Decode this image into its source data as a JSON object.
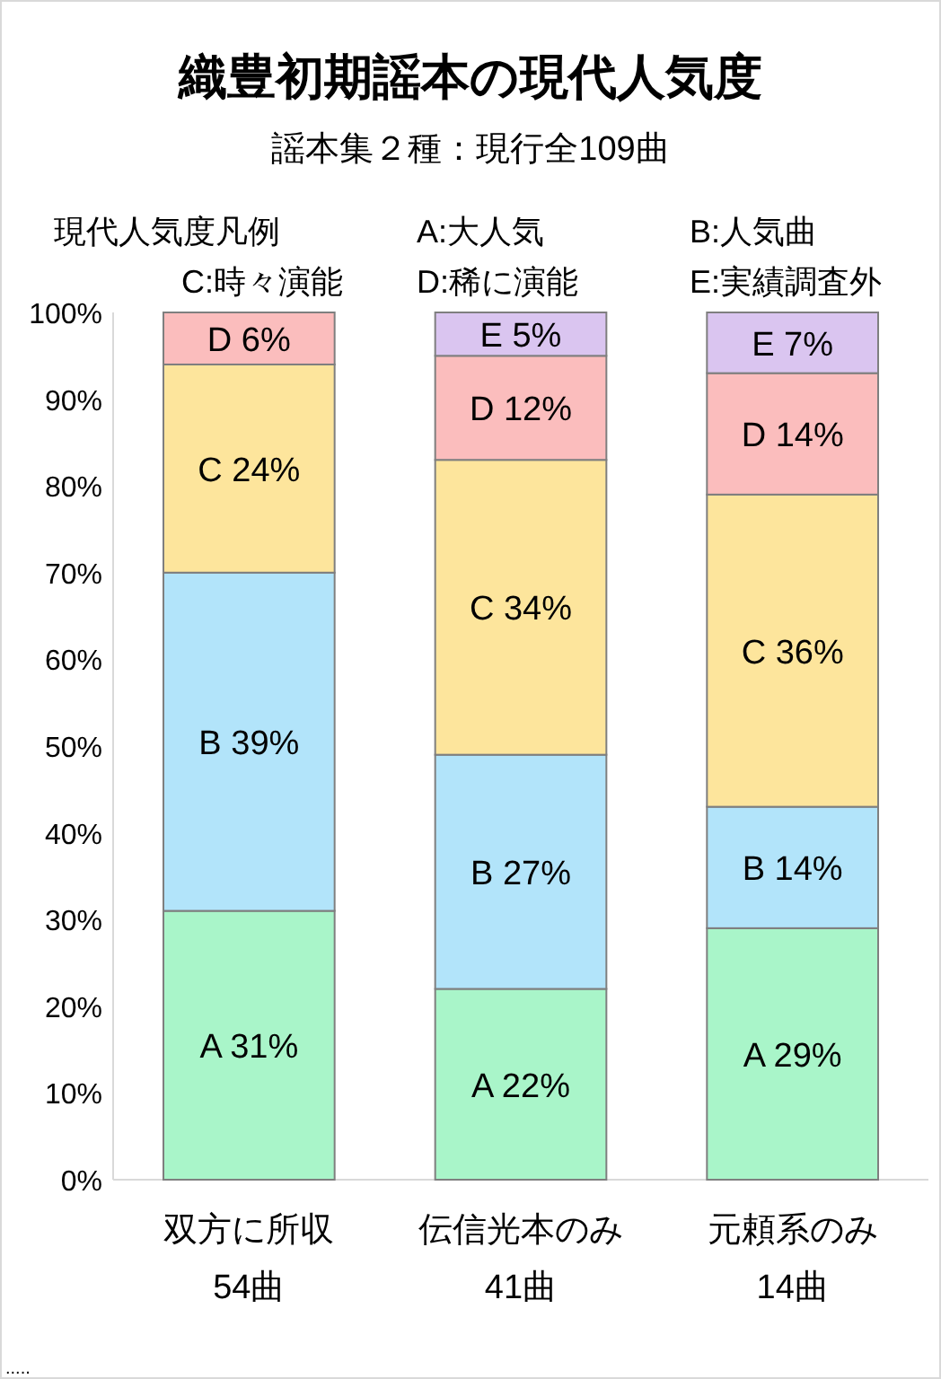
{
  "chart_data": {
    "type": "bar",
    "title": "織豊初期謡本の現代人気度",
    "subtitle": "謡本集２種：現行全109曲",
    "annotations": [
      "現代人気度凡例",
      "A:大人気",
      "B:人気曲",
      "C:時々演能",
      "D:稀に演能",
      "E:実績調査外",
      "....."
    ],
    "categories": [
      "双方に所収\n54曲",
      "伝信光本のみ\n41曲",
      "元頼系のみ\n14曲"
    ],
    "stacked": true,
    "ylim": [
      0,
      100
    ],
    "yticks": [
      {
        "value": 0,
        "label": "0%"
      },
      {
        "value": 10,
        "label": "10%"
      },
      {
        "value": 20,
        "label": "20%"
      },
      {
        "value": 30,
        "label": "30%"
      },
      {
        "value": 40,
        "label": "40%"
      },
      {
        "value": 50,
        "label": "50%"
      },
      {
        "value": 60,
        "label": "60%"
      },
      {
        "value": 70,
        "label": "70%"
      },
      {
        "value": 80,
        "label": "80%"
      },
      {
        "value": 90,
        "label": "90%"
      },
      {
        "value": 100,
        "label": "100%"
      }
    ],
    "series": [
      {
        "color": "#a9f5c9",
        "values": [
          31,
          22,
          29
        ],
        "value_labels": [
          "A 31%",
          "A 22%",
          "A 29%"
        ]
      },
      {
        "color": "#b2e4fa",
        "values": [
          39,
          27,
          14
        ],
        "value_labels": [
          "B 39%",
          "B 27%",
          "B 14%"
        ]
      },
      {
        "color": "#fde59c",
        "values": [
          24,
          34,
          36
        ],
        "value_labels": [
          "C 24%",
          "C 34%",
          "C 36%"
        ]
      },
      {
        "color": "#fbbdbd",
        "values": [
          6,
          12,
          14
        ],
        "value_labels": [
          "D 6%",
          "D 12%",
          "D 14%"
        ]
      },
      {
        "color": "#dac5f0",
        "values": [
          null,
          5,
          7
        ],
        "value_labels": [
          null,
          "E 5%",
          "E 7%"
        ]
      }
    ]
  }
}
